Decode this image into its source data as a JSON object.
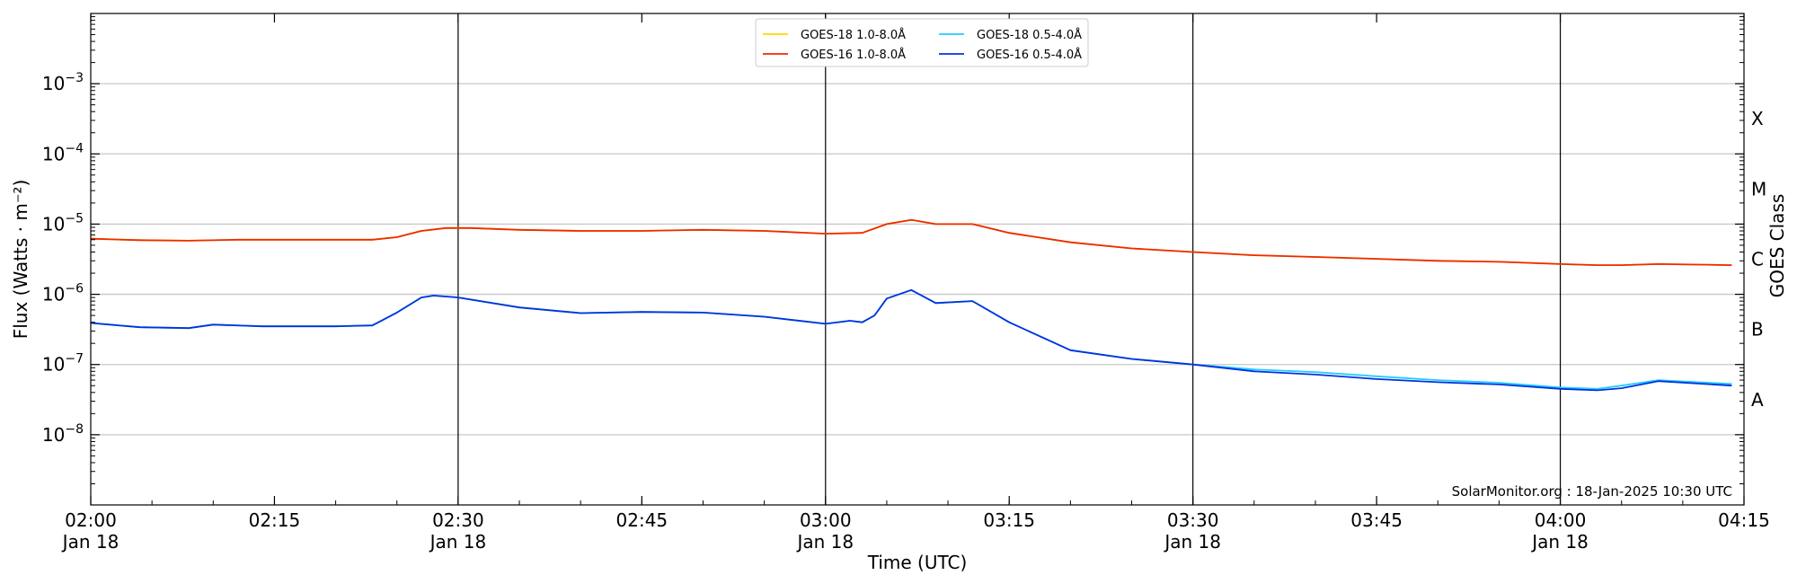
{
  "chart_data": {
    "type": "line",
    "title": "",
    "xlabel": "Time (UTC)",
    "ylabel": "Flux (Watts · m⁻²)",
    "y2label": "GOES Class",
    "yscale": "log",
    "ylim": [
      1e-09,
      0.01
    ],
    "xlim": [
      "2025-01-18 02:00",
      "2025-01-18 04:15"
    ],
    "x_ticks": [
      {
        "time": "02:00",
        "line1": "02:00",
        "line2": "Jan 18"
      },
      {
        "time": "02:15",
        "line1": "02:15",
        "line2": ""
      },
      {
        "time": "02:30",
        "line1": "02:30",
        "line2": "Jan 18"
      },
      {
        "time": "02:45",
        "line1": "02:45",
        "line2": ""
      },
      {
        "time": "03:00",
        "line1": "03:00",
        "line2": "Jan 18"
      },
      {
        "time": "03:15",
        "line1": "03:15",
        "line2": ""
      },
      {
        "time": "03:30",
        "line1": "03:30",
        "line2": "Jan 18"
      },
      {
        "time": "03:45",
        "line1": "03:45",
        "line2": ""
      },
      {
        "time": "04:00",
        "line1": "04:00",
        "line2": "Jan 18"
      },
      {
        "time": "04:15",
        "line1": "04:15",
        "line2": ""
      }
    ],
    "y_ticks": [
      {
        "value": 0.001,
        "mantissa": "10",
        "exponent": "−3"
      },
      {
        "value": 0.0001,
        "mantissa": "10",
        "exponent": "−4"
      },
      {
        "value": 1e-05,
        "mantissa": "10",
        "exponent": "−5"
      },
      {
        "value": 1e-06,
        "mantissa": "10",
        "exponent": "−6"
      },
      {
        "value": 1e-07,
        "mantissa": "10",
        "exponent": "−7"
      },
      {
        "value": 1e-08,
        "mantissa": "10",
        "exponent": "−8"
      }
    ],
    "goes_classes": [
      {
        "label": "X",
        "value": 0.000316
      },
      {
        "label": "M",
        "value": 3.16e-05
      },
      {
        "label": "C",
        "value": 3.16e-06
      },
      {
        "label": "B",
        "value": 3.16e-07
      },
      {
        "label": "A",
        "value": 3.16e-08
      }
    ],
    "vertical_lines": [
      "02:30",
      "03:00",
      "03:30",
      "04:00"
    ],
    "grid": "horizontal",
    "legend_position": "top-center",
    "series": [
      {
        "name": "GOES-18 1.0-8.0Å",
        "color": "#ffd700",
        "x": [
          "02:00",
          "02:04",
          "02:08",
          "02:12",
          "02:16",
          "02:20",
          "02:23",
          "02:25",
          "02:27",
          "02:29",
          "02:31",
          "02:35",
          "02:40",
          "02:45",
          "02:50",
          "02:55",
          "03:00",
          "03:03",
          "03:05",
          "03:07",
          "03:09",
          "03:12",
          "03:15",
          "03:20",
          "03:25",
          "03:30",
          "03:35",
          "03:40",
          "03:45",
          "03:50",
          "03:55",
          "04:00",
          "04:03",
          "04:05",
          "04:08",
          "04:14"
        ],
        "values": [
          6.2e-06,
          5.9e-06,
          5.8e-06,
          6e-06,
          6e-06,
          6e-06,
          6e-06,
          6.5e-06,
          8e-06,
          8.8e-06,
          8.8e-06,
          8.3e-06,
          8e-06,
          8e-06,
          8.3e-06,
          8e-06,
          7.3e-06,
          7.5e-06,
          1e-05,
          1.15e-05,
          1e-05,
          1e-05,
          7.5e-06,
          5.5e-06,
          4.5e-06,
          4e-06,
          3.6e-06,
          3.4e-06,
          3.2e-06,
          3e-06,
          2.9e-06,
          2.7e-06,
          2.6e-06,
          2.6e-06,
          2.7e-06,
          2.6e-06
        ]
      },
      {
        "name": "GOES-16 1.0-8.0Å",
        "color": "#ee2a00",
        "x": [
          "02:00",
          "02:04",
          "02:08",
          "02:12",
          "02:16",
          "02:20",
          "02:23",
          "02:25",
          "02:27",
          "02:29",
          "02:31",
          "02:35",
          "02:40",
          "02:45",
          "02:50",
          "02:55",
          "03:00",
          "03:03",
          "03:05",
          "03:07",
          "03:09",
          "03:12",
          "03:15",
          "03:20",
          "03:25",
          "03:30",
          "03:35",
          "03:40",
          "03:45",
          "03:50",
          "03:55",
          "04:00",
          "04:03",
          "04:05",
          "04:08",
          "04:14"
        ],
        "values": [
          6.2e-06,
          5.9e-06,
          5.8e-06,
          6e-06,
          6e-06,
          6e-06,
          6e-06,
          6.5e-06,
          8e-06,
          8.8e-06,
          8.8e-06,
          8.3e-06,
          8e-06,
          8e-06,
          8.3e-06,
          8e-06,
          7.3e-06,
          7.5e-06,
          1e-05,
          1.15e-05,
          1e-05,
          1e-05,
          7.5e-06,
          5.5e-06,
          4.5e-06,
          4e-06,
          3.6e-06,
          3.4e-06,
          3.2e-06,
          3e-06,
          2.9e-06,
          2.7e-06,
          2.6e-06,
          2.6e-06,
          2.7e-06,
          2.6e-06
        ]
      },
      {
        "name": "GOES-18 0.5-4.0Å",
        "color": "#22ccff",
        "x": [
          "02:00",
          "02:04",
          "02:08",
          "02:10",
          "02:14",
          "02:20",
          "02:23",
          "02:25",
          "02:27",
          "02:28",
          "02:30",
          "02:35",
          "02:40",
          "02:45",
          "02:50",
          "02:55",
          "03:00",
          "03:02",
          "03:03",
          "03:04",
          "03:05",
          "03:07",
          "03:09",
          "03:12",
          "03:15",
          "03:20",
          "03:25",
          "03:30",
          "03:35",
          "03:40",
          "03:45",
          "03:50",
          "03:55",
          "04:00",
          "04:03",
          "04:05",
          "04:08",
          "04:14"
        ],
        "values": [
          3.9e-07,
          3.4e-07,
          3.3e-07,
          3.7e-07,
          3.5e-07,
          3.5e-07,
          3.6e-07,
          5.5e-07,
          9e-07,
          9.6e-07,
          9e-07,
          6.5e-07,
          5.4e-07,
          5.6e-07,
          5.5e-07,
          4.8e-07,
          3.8e-07,
          4.2e-07,
          4e-07,
          5e-07,
          8.7e-07,
          1.15e-06,
          7.5e-07,
          8e-07,
          4e-07,
          1.6e-07,
          1.2e-07,
          1e-07,
          8.5e-08,
          7.8e-08,
          6.8e-08,
          6e-08,
          5.5e-08,
          4.7e-08,
          4.5e-08,
          5e-08,
          6e-08,
          5.3e-08
        ]
      },
      {
        "name": "GOES-16 0.5-4.0Å",
        "color": "#0033dd",
        "x": [
          "02:00",
          "02:04",
          "02:08",
          "02:10",
          "02:14",
          "02:20",
          "02:23",
          "02:25",
          "02:27",
          "02:28",
          "02:30",
          "02:35",
          "02:40",
          "02:45",
          "02:50",
          "02:55",
          "03:00",
          "03:02",
          "03:03",
          "03:04",
          "03:05",
          "03:07",
          "03:09",
          "03:12",
          "03:15",
          "03:20",
          "03:25",
          "03:30",
          "03:35",
          "03:40",
          "03:45",
          "03:50",
          "03:55",
          "04:00",
          "04:03",
          "04:05",
          "04:08",
          "04:14"
        ],
        "values": [
          3.9e-07,
          3.4e-07,
          3.3e-07,
          3.7e-07,
          3.5e-07,
          3.5e-07,
          3.6e-07,
          5.5e-07,
          9e-07,
          9.6e-07,
          9e-07,
          6.5e-07,
          5.4e-07,
          5.6e-07,
          5.5e-07,
          4.8e-07,
          3.8e-07,
          4.2e-07,
          4e-07,
          5e-07,
          8.7e-07,
          1.15e-06,
          7.5e-07,
          8e-07,
          4e-07,
          1.6e-07,
          1.2e-07,
          1e-07,
          8e-08,
          7.2e-08,
          6.2e-08,
          5.6e-08,
          5.2e-08,
          4.5e-08,
          4.3e-08,
          4.6e-08,
          5.8e-08,
          5e-08
        ]
      }
    ],
    "annotation": "SolarMonitor.org : 18-Jan-2025 10:30 UTC"
  }
}
